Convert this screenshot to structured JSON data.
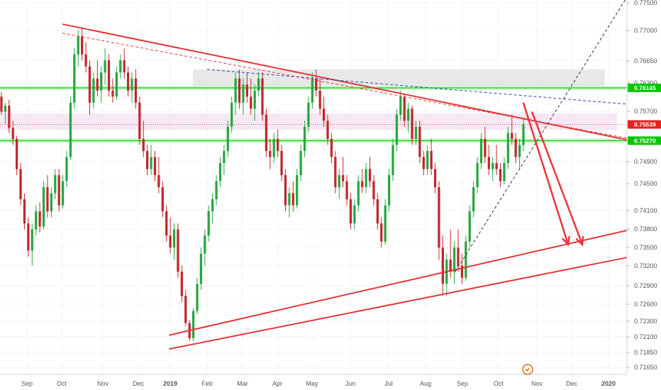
{
  "chart_data": {
    "type": "candlestick",
    "x_tick_labels": [
      "Sep",
      "Oct",
      "Nov",
      "Dec",
      "2019",
      "Feb",
      "Mar",
      "Apr",
      "May",
      "Jun",
      "Jul",
      "Aug",
      "Sep",
      "Oct",
      "Nov",
      "Dec",
      "2020"
    ],
    "y_tick_labels": [
      "0.77500",
      "0.77000",
      "0.76650",
      "0.76300",
      "0.75700",
      "0.74900",
      "0.74500",
      "0.74100",
      "0.73800",
      "0.73500",
      "0.73200",
      "0.72900",
      "0.72600",
      "0.72300",
      "0.72100",
      "0.71850",
      "0.71650"
    ],
    "ylim": [
      0.714,
      0.776
    ],
    "price_tags": [
      {
        "label": "0.76145",
        "price": 0.76145,
        "color": "#00c800"
      },
      {
        "label": "0.75539",
        "price": 0.75539,
        "color": "#e82020"
      },
      {
        "label": "0.75270",
        "price": 0.7527,
        "color": "#00c800"
      }
    ],
    "horizontal_levels": [
      0.76145,
      0.7527
    ],
    "zones": [
      {
        "name": "grey-supply-zone",
        "price_top": 0.7645,
        "price_bottom": 0.7618,
        "color": "#d9d9d9"
      },
      {
        "name": "pink-zone",
        "price_top": 0.7572,
        "price_bottom": 0.7545,
        "color": "#f0d8ec"
      }
    ],
    "trend_lines": [
      {
        "name": "descending-resistance",
        "from": [
          "2018-10-01",
          0.772
        ],
        "to": [
          "2020-01-20",
          0.7527
        ],
        "style": "solid",
        "color": "#e8363a"
      },
      {
        "name": "descending-resistance-dashed",
        "from": [
          "2018-10-01",
          0.7705
        ],
        "to": [
          "2020-01-20",
          0.753
        ],
        "style": "dashed",
        "color": "#e8363a"
      },
      {
        "name": "blue-dashed-line",
        "from": [
          "2019-02-01",
          0.7645
        ],
        "to": [
          "2020-01-20",
          0.7587
        ],
        "style": "dashed",
        "color": "#3040c0"
      },
      {
        "name": "ascending-support-upper",
        "from": [
          "2018-12-31",
          0.7205
        ],
        "to": [
          "2020-01-20",
          0.738
        ],
        "style": "solid",
        "color": "#e8363a"
      },
      {
        "name": "ascending-support-lower",
        "from": [
          "2018-12-31",
          0.7182
        ],
        "to": [
          "2020-01-20",
          0.7335
        ],
        "style": "solid",
        "color": "#e8363a"
      },
      {
        "name": "black-dashed-trendline",
        "from": [
          "2019-08-26",
          0.731
        ],
        "to": [
          "2020-01-15",
          0.776
        ],
        "style": "dashed",
        "color": "#333333"
      }
    ],
    "arrows": [
      {
        "name": "forecast-arrow-1",
        "from": [
          "2019-10-21",
          0.759
        ],
        "to": [
          "2019-11-28",
          0.7355
        ],
        "color": "#e8363a"
      },
      {
        "name": "forecast-arrow-2",
        "from": [
          "2019-10-28",
          0.7575
        ],
        "to": [
          "2019-12-10",
          0.7355
        ],
        "color": "#e8363a"
      }
    ],
    "candles": [
      [
        0.76,
        0.7608,
        0.757,
        0.7575
      ],
      [
        0.7575,
        0.759,
        0.7555,
        0.7585
      ],
      [
        0.7585,
        0.7595,
        0.754,
        0.7548
      ],
      [
        0.7548,
        0.756,
        0.752,
        0.753
      ],
      [
        0.753,
        0.7535,
        0.747,
        0.748
      ],
      [
        0.748,
        0.749,
        0.742,
        0.743
      ],
      [
        0.743,
        0.744,
        0.738,
        0.739
      ],
      [
        0.739,
        0.74,
        0.7335,
        0.7345
      ],
      [
        0.7345,
        0.739,
        0.732,
        0.738
      ],
      [
        0.738,
        0.742,
        0.737,
        0.741
      ],
      [
        0.741,
        0.7425,
        0.7375,
        0.7385
      ],
      [
        0.7385,
        0.746,
        0.738,
        0.745
      ],
      [
        0.745,
        0.747,
        0.74,
        0.741
      ],
      [
        0.741,
        0.745,
        0.74,
        0.744
      ],
      [
        0.744,
        0.748,
        0.743,
        0.747
      ],
      [
        0.747,
        0.748,
        0.741,
        0.742
      ],
      [
        0.742,
        0.747,
        0.7415,
        0.746
      ],
      [
        0.746,
        0.751,
        0.745,
        0.75
      ],
      [
        0.75,
        0.76,
        0.7495,
        0.759
      ],
      [
        0.759,
        0.768,
        0.758,
        0.767
      ],
      [
        0.767,
        0.771,
        0.765,
        0.77
      ],
      [
        0.77,
        0.7715,
        0.766,
        0.767
      ],
      [
        0.767,
        0.769,
        0.764,
        0.765
      ],
      [
        0.765,
        0.766,
        0.757,
        0.759
      ],
      [
        0.759,
        0.764,
        0.758,
        0.763
      ],
      [
        0.763,
        0.766,
        0.76,
        0.761
      ],
      [
        0.761,
        0.765,
        0.759,
        0.764
      ],
      [
        0.764,
        0.768,
        0.762,
        0.766
      ],
      [
        0.766,
        0.767,
        0.76,
        0.761
      ],
      [
        0.761,
        0.763,
        0.759,
        0.76
      ],
      [
        0.76,
        0.765,
        0.7595,
        0.764
      ],
      [
        0.764,
        0.767,
        0.763,
        0.766
      ],
      [
        0.766,
        0.768,
        0.763,
        0.764
      ],
      [
        0.764,
        0.765,
        0.76,
        0.761
      ],
      [
        0.761,
        0.764,
        0.759,
        0.763
      ],
      [
        0.763,
        0.7645,
        0.758,
        0.759
      ],
      [
        0.759,
        0.76,
        0.752,
        0.753
      ],
      [
        0.753,
        0.756,
        0.75,
        0.751
      ],
      [
        0.751,
        0.752,
        0.747,
        0.748
      ],
      [
        0.748,
        0.752,
        0.747,
        0.75
      ],
      [
        0.75,
        0.751,
        0.746,
        0.747
      ],
      [
        0.747,
        0.75,
        0.744,
        0.745
      ],
      [
        0.745,
        0.746,
        0.74,
        0.741
      ],
      [
        0.741,
        0.742,
        0.736,
        0.737
      ],
      [
        0.737,
        0.74,
        0.734,
        0.735
      ],
      [
        0.735,
        0.739,
        0.733,
        0.738
      ],
      [
        0.738,
        0.739,
        0.73,
        0.731
      ],
      [
        0.731,
        0.732,
        0.726,
        0.727
      ],
      [
        0.727,
        0.728,
        0.722,
        0.7225
      ],
      [
        0.7225,
        0.723,
        0.7195,
        0.72
      ],
      [
        0.72,
        0.725,
        0.7195,
        0.7245
      ],
      [
        0.7245,
        0.73,
        0.724,
        0.729
      ],
      [
        0.729,
        0.735,
        0.728,
        0.734
      ],
      [
        0.734,
        0.738,
        0.732,
        0.737
      ],
      [
        0.737,
        0.742,
        0.736,
        0.741
      ],
      [
        0.741,
        0.744,
        0.739,
        0.743
      ],
      [
        0.743,
        0.747,
        0.742,
        0.746
      ],
      [
        0.746,
        0.75,
        0.745,
        0.749
      ],
      [
        0.749,
        0.752,
        0.747,
        0.751
      ],
      [
        0.751,
        0.756,
        0.75,
        0.755
      ],
      [
        0.755,
        0.76,
        0.754,
        0.759
      ],
      [
        0.759,
        0.764,
        0.757,
        0.763
      ],
      [
        0.763,
        0.7645,
        0.758,
        0.759
      ],
      [
        0.759,
        0.763,
        0.757,
        0.762
      ],
      [
        0.762,
        0.764,
        0.759,
        0.76
      ],
      [
        0.76,
        0.763,
        0.757,
        0.758
      ],
      [
        0.758,
        0.762,
        0.756,
        0.761
      ],
      [
        0.761,
        0.764,
        0.76,
        0.763
      ],
      [
        0.763,
        0.764,
        0.756,
        0.757
      ],
      [
        0.757,
        0.758,
        0.75,
        0.751
      ],
      [
        0.751,
        0.753,
        0.748,
        0.75
      ],
      [
        0.75,
        0.754,
        0.749,
        0.753
      ],
      [
        0.753,
        0.7545,
        0.75,
        0.751
      ],
      [
        0.751,
        0.752,
        0.746,
        0.747
      ],
      [
        0.747,
        0.748,
        0.741,
        0.742
      ],
      [
        0.742,
        0.745,
        0.74,
        0.744
      ],
      [
        0.744,
        0.746,
        0.741,
        0.742
      ],
      [
        0.742,
        0.748,
        0.7415,
        0.747
      ],
      [
        0.747,
        0.752,
        0.746,
        0.751
      ],
      [
        0.751,
        0.756,
        0.75,
        0.755
      ],
      [
        0.755,
        0.76,
        0.754,
        0.759
      ],
      [
        0.759,
        0.764,
        0.758,
        0.763
      ],
      [
        0.763,
        0.7645,
        0.76,
        0.761
      ],
      [
        0.761,
        0.763,
        0.757,
        0.758
      ],
      [
        0.758,
        0.76,
        0.755,
        0.756
      ],
      [
        0.756,
        0.757,
        0.752,
        0.753
      ],
      [
        0.753,
        0.754,
        0.749,
        0.75
      ],
      [
        0.75,
        0.751,
        0.744,
        0.745
      ],
      [
        0.745,
        0.748,
        0.743,
        0.747
      ],
      [
        0.747,
        0.75,
        0.745,
        0.746
      ],
      [
        0.746,
        0.747,
        0.742,
        0.743
      ],
      [
        0.743,
        0.744,
        0.738,
        0.739
      ],
      [
        0.739,
        0.743,
        0.738,
        0.742
      ],
      [
        0.742,
        0.747,
        0.741,
        0.746
      ],
      [
        0.746,
        0.748,
        0.744,
        0.745
      ],
      [
        0.745,
        0.749,
        0.744,
        0.748
      ],
      [
        0.748,
        0.75,
        0.745,
        0.746
      ],
      [
        0.746,
        0.747,
        0.742,
        0.743
      ],
      [
        0.743,
        0.744,
        0.738,
        0.739
      ],
      [
        0.739,
        0.74,
        0.735,
        0.736
      ],
      [
        0.736,
        0.743,
        0.7355,
        0.742
      ],
      [
        0.742,
        0.748,
        0.741,
        0.747
      ],
      [
        0.747,
        0.753,
        0.746,
        0.752
      ],
      [
        0.752,
        0.758,
        0.751,
        0.757
      ],
      [
        0.757,
        0.761,
        0.756,
        0.76
      ],
      [
        0.76,
        0.7605,
        0.755,
        0.756
      ],
      [
        0.756,
        0.759,
        0.754,
        0.758
      ],
      [
        0.758,
        0.7585,
        0.752,
        0.753
      ],
      [
        0.753,
        0.756,
        0.752,
        0.755
      ],
      [
        0.755,
        0.756,
        0.749,
        0.75
      ],
      [
        0.75,
        0.751,
        0.747,
        0.748
      ],
      [
        0.748,
        0.752,
        0.747,
        0.751
      ],
      [
        0.751,
        0.753,
        0.747,
        0.748
      ],
      [
        0.748,
        0.749,
        0.744,
        0.745
      ],
      [
        0.745,
        0.746,
        0.733,
        0.735
      ],
      [
        0.735,
        0.737,
        0.727,
        0.729
      ],
      [
        0.729,
        0.734,
        0.727,
        0.733
      ],
      [
        0.733,
        0.738,
        0.73,
        0.731
      ],
      [
        0.731,
        0.736,
        0.729,
        0.735
      ],
      [
        0.735,
        0.738,
        0.731,
        0.732
      ],
      [
        0.732,
        0.734,
        0.729,
        0.73
      ],
      [
        0.73,
        0.737,
        0.7295,
        0.736
      ],
      [
        0.736,
        0.742,
        0.735,
        0.741
      ],
      [
        0.741,
        0.746,
        0.74,
        0.745
      ],
      [
        0.745,
        0.75,
        0.744,
        0.749
      ],
      [
        0.749,
        0.754,
        0.748,
        0.753
      ],
      [
        0.753,
        0.755,
        0.749,
        0.75
      ],
      [
        0.75,
        0.752,
        0.747,
        0.748
      ],
      [
        0.748,
        0.75,
        0.746,
        0.749
      ],
      [
        0.749,
        0.752,
        0.747,
        0.748
      ],
      [
        0.748,
        0.749,
        0.745,
        0.746
      ],
      [
        0.746,
        0.75,
        0.7455,
        0.749
      ],
      [
        0.749,
        0.755,
        0.748,
        0.754
      ],
      [
        0.754,
        0.757,
        0.752,
        0.753
      ],
      [
        0.753,
        0.754,
        0.749,
        0.75
      ],
      [
        0.75,
        0.753,
        0.748,
        0.752
      ],
      [
        0.752,
        0.7565,
        0.751,
        0.7554
      ]
    ]
  }
}
